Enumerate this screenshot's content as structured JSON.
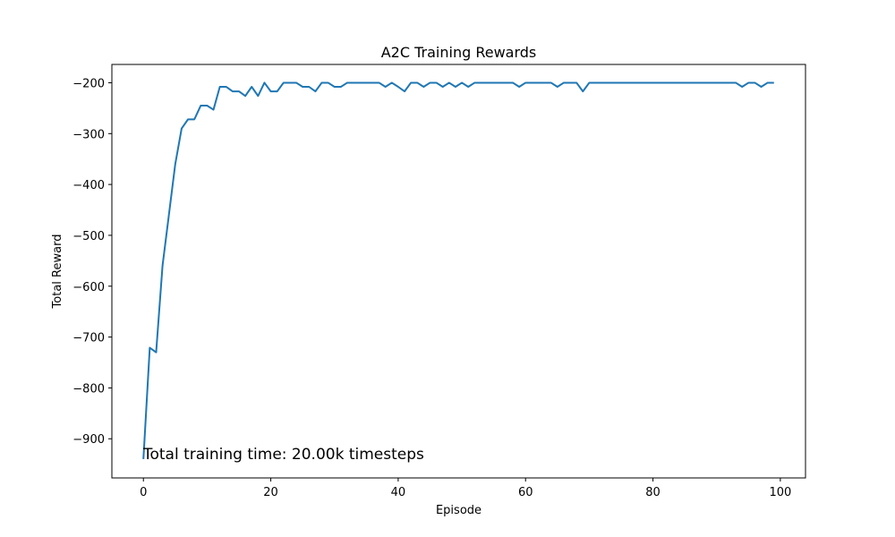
{
  "chart_data": {
    "type": "line",
    "title": "A2C Training Rewards",
    "xlabel": "Episode",
    "ylabel": "Total Reward",
    "xlim": [
      -4.95,
      103.95
    ],
    "ylim": [
      -977,
      -164
    ],
    "xticks": [
      0,
      20,
      40,
      60,
      80,
      100
    ],
    "yticks": [
      -900,
      -800,
      -700,
      -600,
      -500,
      -400,
      -300,
      -200
    ],
    "tick_labels_x": [
      "0",
      "20",
      "40",
      "60",
      "80",
      "100"
    ],
    "tick_labels_y": [
      "−900",
      "−800",
      "−700",
      "−600",
      "−500",
      "−400",
      "−300",
      "−200"
    ],
    "grid": false,
    "line_color": "#1f77b4",
    "annotation": "Total training time: 20.00k timesteps",
    "series": [
      {
        "x": [
          0,
          1,
          2,
          3,
          4,
          5,
          6,
          7,
          8,
          9,
          10,
          11,
          12,
          13,
          14,
          15,
          16,
          17,
          18,
          19,
          20,
          21,
          22,
          23,
          24,
          25,
          26,
          27,
          28,
          29,
          30,
          31,
          32,
          33,
          34,
          35,
          36,
          37,
          38,
          39,
          40,
          41,
          42,
          43,
          44,
          45,
          46,
          47,
          48,
          49,
          50,
          51,
          52,
          53,
          54,
          55,
          56,
          57,
          58,
          59,
          60,
          61,
          62,
          63,
          64,
          65,
          66,
          67,
          68,
          69,
          70,
          71,
          72,
          73,
          74,
          75,
          76,
          77,
          78,
          79,
          80,
          81,
          82,
          83,
          84,
          85,
          86,
          87,
          88,
          89,
          90,
          91,
          92,
          93,
          94,
          95,
          96,
          97,
          98,
          99
        ],
        "values": [
          -940,
          -721,
          -730,
          -560,
          -460,
          -360,
          -290,
          -272,
          -272,
          -245,
          -245,
          -253,
          -208,
          -208,
          -217,
          -217,
          -226,
          -208,
          -226,
          -200,
          -217,
          -217,
          -200,
          -200,
          -200,
          -208,
          -208,
          -217,
          -200,
          -200,
          -208,
          -208,
          -200,
          -200,
          -200,
          -200,
          -200,
          -200,
          -208,
          -200,
          -208,
          -217,
          -200,
          -200,
          -208,
          -200,
          -200,
          -208,
          -200,
          -208,
          -200,
          -208,
          -200,
          -200,
          -200,
          -200,
          -200,
          -200,
          -200,
          -208,
          -200,
          -200,
          -200,
          -200,
          -200,
          -208,
          -200,
          -200,
          -200,
          -217,
          -200,
          -200,
          -200,
          -200,
          -200,
          -200,
          -200,
          -200,
          -200,
          -200,
          -200,
          -200,
          -200,
          -200,
          -200,
          -200,
          -200,
          -200,
          -200,
          -200,
          -200,
          -200,
          -200,
          -200,
          -208,
          -200,
          -200,
          -208,
          -200,
          -200
        ]
      }
    ]
  }
}
